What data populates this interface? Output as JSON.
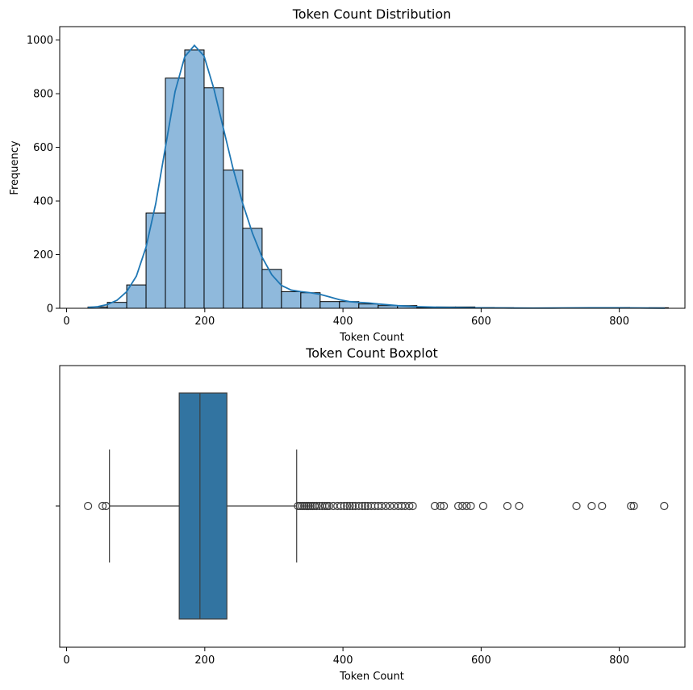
{
  "chart_data": [
    {
      "type": "bar",
      "subtype": "histogram_with_kde",
      "title": "Token Count Distribution",
      "xlabel": "Token Count",
      "ylabel": "Frequency",
      "xlim": [
        -10,
        895
      ],
      "ylim": [
        0,
        1050
      ],
      "xticks": [
        0,
        200,
        400,
        600,
        800
      ],
      "yticks": [
        0,
        200,
        400,
        600,
        800,
        1000
      ],
      "bin_edges": [
        31,
        59,
        87,
        115,
        143,
        171,
        199,
        227,
        255,
        283,
        311,
        339,
        367,
        395,
        423,
        451,
        479,
        507,
        535,
        563,
        591,
        619,
        647,
        675,
        703,
        731,
        759,
        787,
        815,
        843,
        871
      ],
      "values": [
        5,
        22,
        87,
        355,
        858,
        963,
        822,
        515,
        298,
        145,
        62,
        58,
        25,
        25,
        16,
        10,
        10,
        3,
        5,
        5,
        3,
        2,
        1,
        0,
        1,
        1,
        2,
        3,
        0,
        2
      ],
      "kde": {
        "x": [
          31,
          45,
          59,
          73,
          87,
          101,
          115,
          129,
          143,
          157,
          171,
          185,
          199,
          213,
          227,
          241,
          255,
          269,
          283,
          297,
          311,
          325,
          339,
          353,
          367,
          381,
          395,
          409,
          423,
          437,
          451,
          479,
          507,
          535,
          563,
          591,
          619,
          647,
          675,
          703,
          731,
          759,
          787,
          815,
          843,
          866
        ],
        "y": [
          3,
          6,
          14,
          30,
          62,
          120,
          228,
          390,
          600,
          808,
          938,
          980,
          940,
          820,
          670,
          520,
          390,
          280,
          190,
          125,
          85,
          68,
          62,
          58,
          52,
          42,
          32,
          25,
          22,
          20,
          16,
          10,
          6,
          4,
          3,
          2,
          1.5,
          1,
          0.8,
          1,
          1.5,
          2,
          2,
          1.5,
          1,
          0.5
        ]
      }
    },
    {
      "type": "box",
      "title": "Token Count Boxplot",
      "xlabel": "Token Count",
      "xlim": [
        -10,
        895
      ],
      "xticks": [
        0,
        200,
        400,
        600,
        800
      ],
      "yticks": [
        ""
      ],
      "whisker_low": 62,
      "q1": 163,
      "median": 193,
      "q3": 232,
      "whisker_high": 333,
      "outliers": [
        31,
        52,
        57,
        335,
        338,
        341,
        344,
        347,
        350,
        353,
        356,
        359,
        362,
        366,
        370,
        374,
        377,
        380,
        386,
        392,
        397,
        402,
        406,
        410,
        414,
        418,
        423,
        428,
        432,
        436,
        441,
        446,
        451,
        456,
        462,
        468,
        474,
        480,
        485,
        490,
        496,
        501,
        533,
        541,
        546,
        567,
        573,
        579,
        585,
        603,
        638,
        655,
        738,
        760,
        775,
        817,
        821,
        865
      ]
    }
  ]
}
